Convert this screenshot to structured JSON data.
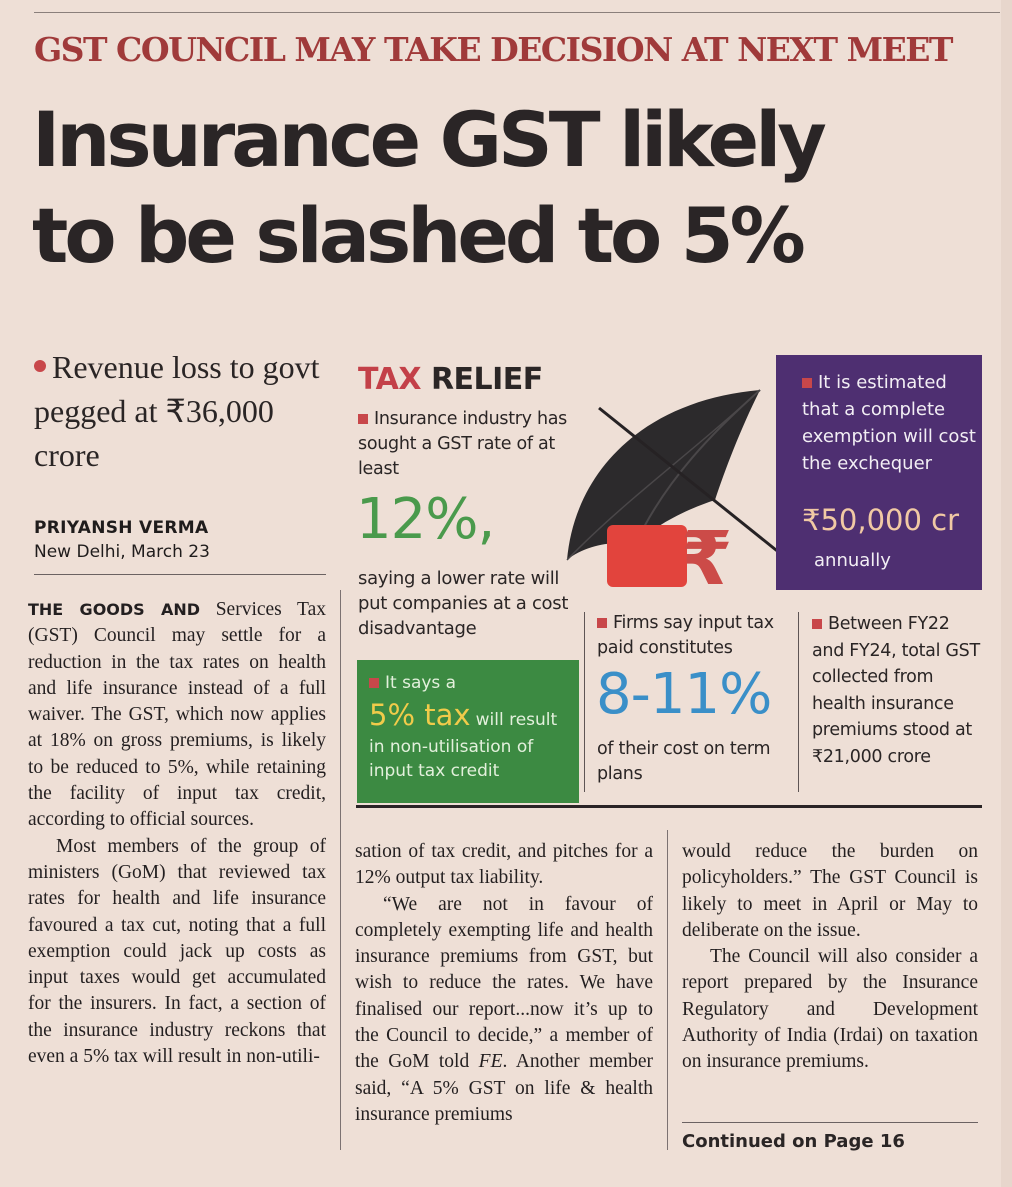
{
  "kicker": "GST COUNCIL MAY TAKE DECISION AT NEXT MEET",
  "headline": {
    "line1": "Insurance GST likely",
    "line2": "to be slashed to 5%"
  },
  "deck": "Revenue loss to govt pegged at ₹36,000 crore",
  "byline": {
    "author": "PRIYANSH VERMA",
    "dateline": "New Delhi, March 23"
  },
  "infographic": {
    "title_a": "TAX",
    "title_b": "RELIEF",
    "industry_text": "Insurance industry has sought a GST rate of at least",
    "industry_figure": "12%,",
    "industry_tail": "saying a lower rate will put companies at a cost disadvantage",
    "exemption_text": "It is estimated that a complete exemption will cost the exchequer",
    "exemption_figure": "₹50,000 cr",
    "exemption_tail": "annually",
    "itc_lead": "It says a",
    "itc_figure": "5% tax",
    "itc_mid": "will result",
    "itc_tail": "in non-utilisation of input tax credit",
    "firms_text": "Firms say input tax paid constitutes",
    "firms_figure": "8-11%",
    "firms_tail": "of their cost on term plans",
    "collection_text": "Between FY22 and FY24, total GST collected from health insurance premiums stood at ₹21,000 crore",
    "colors": {
      "purple": "#4e2f71",
      "green": "#3c8a42",
      "accent_red": "#c8474a",
      "figure_green": "#4a9a4c",
      "figure_blue": "#3a8fc8",
      "figure_gold": "#f1cb4a"
    }
  },
  "body": {
    "col1_lead": "THE GOODS AND",
    "col1_p1": "Services Tax (GST) Council may settle for a reduction in the tax rates on health and life insurance instead of a full waiver. The GST, which now applies at 18% on gross premiums, is likely to be reduced to 5%, while retaining the facility of input tax credit, according to official sources.",
    "col1_p2": "Most members of the group of ministers (GoM) that reviewed tax rates for health and life insurance favoured a tax cut, noting that a full exemption could jack up costs as input taxes would get accumulated for the insurers. In fact, a section of the insurance industry reckons that even a 5% tax will result in non-utili-",
    "col2_p1": "sation of tax credit, and pitches for a 12% output tax liability.",
    "col2_p2_a": "“We are not in favour of completely exempting life and health insurance premiums from GST, but wish to reduce the rates. We have finalised our report...now it’s up to the Council to decide,” a member of the GoM told ",
    "col2_p2_fe": "FE",
    "col2_p2_b": ". Another member said, “A 5% GST on life & health insurance premiums",
    "col3_p1": "would reduce the burden on policyholders.” The GST Council is likely to meet in April or May to deliberate on the issue.",
    "col3_p2": "The Council will also consider a report prepared by the Insurance Regulatory and Development Authority of India (Irdai) on taxation on insurance premiums.",
    "continued": "Continued on Page 16"
  }
}
